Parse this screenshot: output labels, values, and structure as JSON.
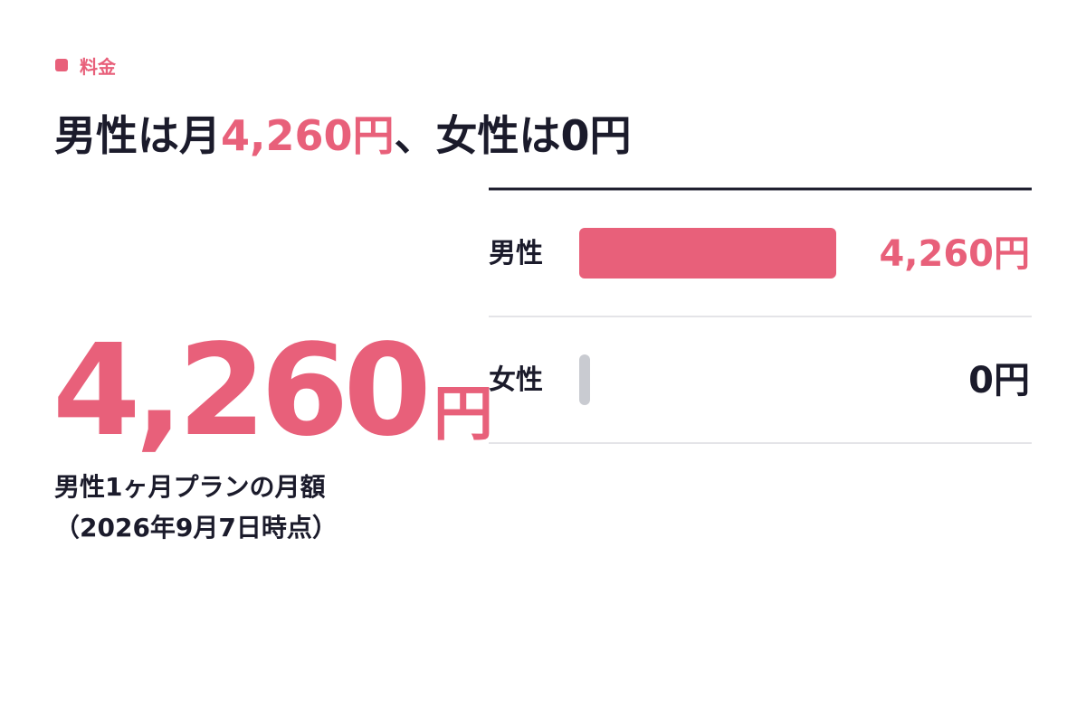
{
  "header": {
    "tag": "料金",
    "title": [
      "男性は月",
      "4,260円",
      "、女性は0円"
    ]
  },
  "highlight": {
    "value": "4,260",
    "unit": "円",
    "caption": [
      "男性1ヶ月プランの月額",
      "（2026年9月7日時点）"
    ]
  },
  "chart_data": {
    "type": "bar",
    "orientation": "horizontal",
    "categories": [
      "男性",
      "女性"
    ],
    "values": [
      4260,
      0
    ],
    "value_labels": [
      "4,260円",
      "0円"
    ],
    "colors": [
      "#e8607a",
      "#c9cbd1"
    ],
    "label_colors": [
      "#e8607a",
      "#1b1b2b"
    ]
  }
}
